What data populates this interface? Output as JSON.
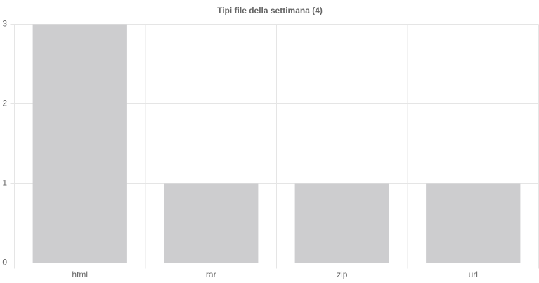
{
  "chart_data": {
    "type": "bar",
    "title": "Tipi file della settimana (4)",
    "categories": [
      "html",
      "rar",
      "zip",
      "url"
    ],
    "values": [
      3,
      1,
      1,
      1
    ],
    "color": "#cdcdcf",
    "ylim": [
      0,
      3
    ],
    "yticks": [
      0,
      1,
      2,
      3
    ],
    "grid": true
  }
}
